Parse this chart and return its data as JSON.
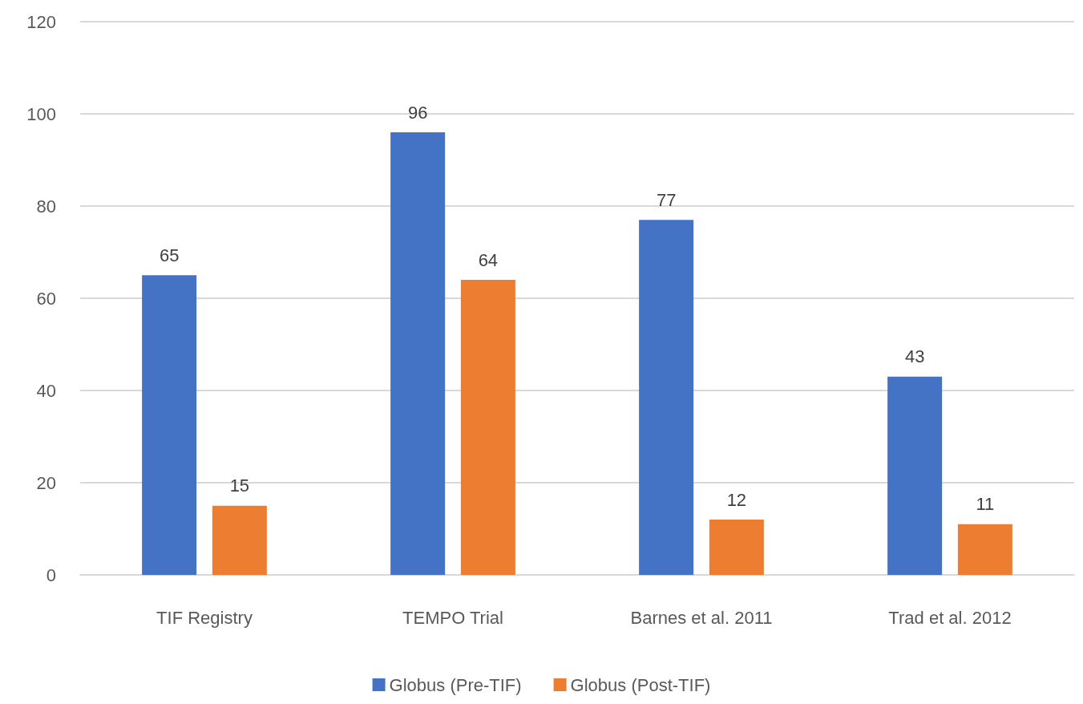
{
  "chart_data": {
    "type": "bar",
    "categories": [
      "TIF Registry",
      "TEMPO Trial",
      "Barnes et al. 2011",
      "Trad et al. 2012"
    ],
    "series": [
      {
        "name": "Globus (Pre-TIF)",
        "color": "#4472c4",
        "values": [
          65,
          96,
          77,
          43
        ]
      },
      {
        "name": "Globus (Post-TIF)",
        "color": "#ed7d31",
        "values": [
          15,
          64,
          12,
          11
        ]
      }
    ],
    "ylim": [
      0,
      120
    ],
    "yticks": [
      0,
      20,
      40,
      60,
      80,
      100,
      120
    ],
    "grid": "y",
    "legend": "bottom",
    "data_labels": true
  }
}
